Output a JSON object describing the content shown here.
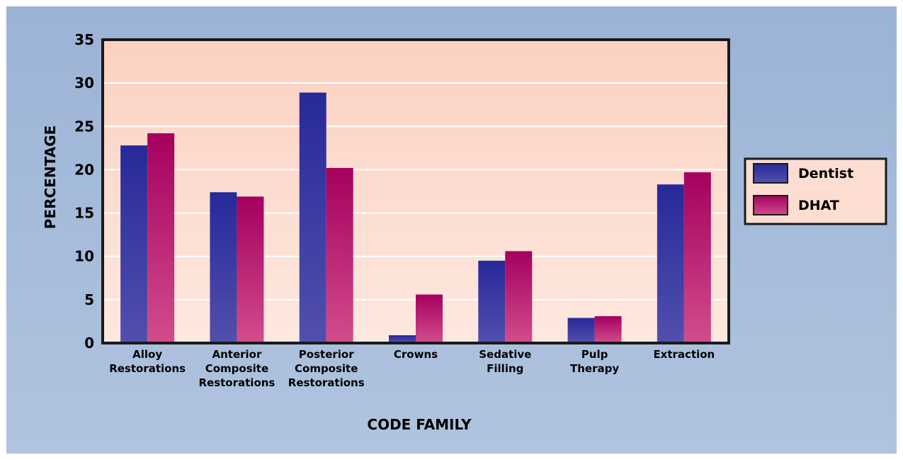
{
  "chart_data": {
    "type": "bar",
    "title": "",
    "xlabel": "CODE FAMILY",
    "ylabel": "PERCENTAGE",
    "ylim": [
      0,
      35
    ],
    "yticks": [
      "0",
      "5",
      "10",
      "15",
      "20",
      "25",
      "30",
      "35"
    ],
    "grid": true,
    "legend_position": "right",
    "categories": [
      [
        "Alloy",
        "Restorations"
      ],
      [
        "Anterior",
        "Composite",
        "Restorations"
      ],
      [
        "Posterior",
        "Composite",
        "Restorations"
      ],
      [
        "Crowns"
      ],
      [
        "Sedative",
        "Filling"
      ],
      [
        "Pulp",
        "Therapy"
      ],
      [
        "Extraction"
      ]
    ],
    "series": [
      {
        "name": "Dentist",
        "values": [
          22.8,
          17.4,
          28.9,
          0.9,
          9.5,
          2.9,
          18.3
        ]
      },
      {
        "name": "DHAT",
        "values": [
          24.2,
          16.9,
          20.2,
          5.6,
          10.6,
          3.1,
          19.7
        ]
      }
    ]
  },
  "colors": {
    "background": "#a5b9d9",
    "plot_bg_top": "#fbd1c1",
    "plot_bg_bottom": "#fde8df",
    "gridline": "#ffffff",
    "axis": "#1a1a1a",
    "dentist_top": "#27299a",
    "dentist_bottom": "#5150ad",
    "dhat_top": "#a5005e",
    "dhat_bottom": "#d24d8d",
    "legend_bg": "#fcddd2"
  }
}
